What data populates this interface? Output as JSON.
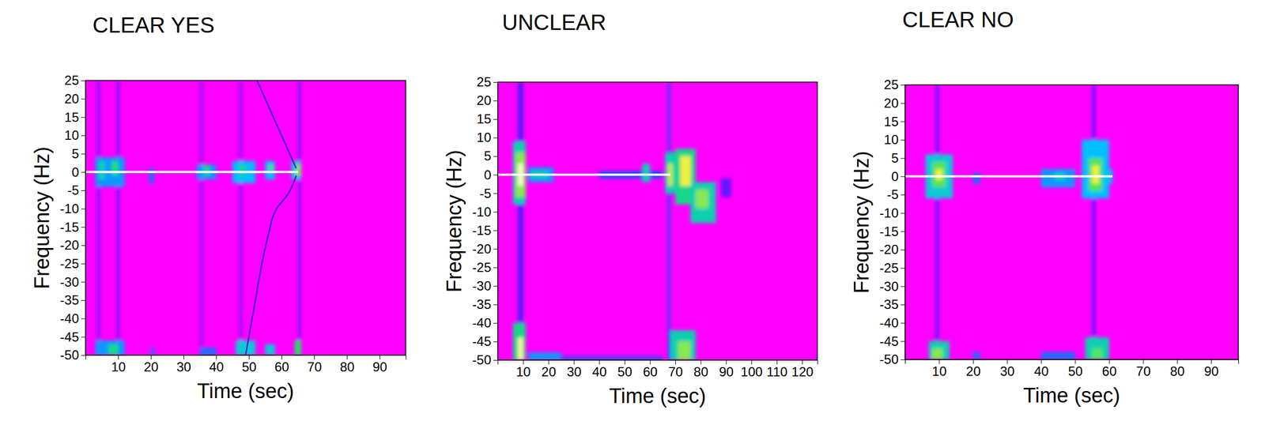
{
  "chart_data": [
    {
      "type": "heatmap",
      "title": "CLEAR YES",
      "xlabel": "Time (sec)",
      "ylabel": "Frequency (Hz)",
      "xlim": [
        0,
        98
      ],
      "xticks": [
        10,
        20,
        30,
        40,
        50,
        60,
        70,
        80,
        90
      ],
      "ylim": [
        -50,
        25
      ],
      "yticks": [
        -50,
        -45,
        -40,
        -35,
        -30,
        -25,
        -20,
        -15,
        -10,
        -5,
        0,
        5,
        10,
        15,
        20,
        25
      ],
      "clim": [
        0,
        1
      ],
      "cells": [
        {
          "t": [
            3.5,
            4.5
          ],
          "f": [
            -50,
            25
          ],
          "value": 0.12
        },
        {
          "t": [
            9.5,
            10.5
          ],
          "f": [
            -50,
            25
          ],
          "value": 0.12
        },
        {
          "t": [
            35,
            36
          ],
          "f": [
            -50,
            25
          ],
          "value": 0.1
        },
        {
          "t": [
            47,
            48
          ],
          "f": [
            -50,
            25
          ],
          "value": 0.1
        },
        {
          "t": [
            65,
            66
          ],
          "f": [
            -50,
            25
          ],
          "value": 0.12
        },
        {
          "t": [
            3,
            12
          ],
          "f": [
            -4,
            4
          ],
          "value": 0.35
        },
        {
          "t": [
            4,
            6
          ],
          "f": [
            -2,
            3
          ],
          "value": 0.5
        },
        {
          "t": [
            8,
            10
          ],
          "f": [
            -1,
            3
          ],
          "value": 0.6
        },
        {
          "t": [
            19.5,
            21
          ],
          "f": [
            -3,
            1
          ],
          "value": 0.3
        },
        {
          "t": [
            34,
            40
          ],
          "f": [
            -2,
            2
          ],
          "value": 0.35
        },
        {
          "t": [
            36,
            38
          ],
          "f": [
            -1,
            2
          ],
          "value": 0.55
        },
        {
          "t": [
            45,
            52
          ],
          "f": [
            -3,
            3
          ],
          "value": 0.4
        },
        {
          "t": [
            47,
            49
          ],
          "f": [
            -1,
            2
          ],
          "value": 0.55
        },
        {
          "t": [
            55,
            58
          ],
          "f": [
            -2,
            3
          ],
          "value": 0.4
        },
        {
          "t": [
            56,
            57.5
          ],
          "f": [
            0,
            2
          ],
          "value": 0.65
        },
        {
          "t": [
            63,
            66
          ],
          "f": [
            -2,
            3
          ],
          "value": 0.45
        },
        {
          "t": [
            64.5,
            66
          ],
          "f": [
            -1,
            2
          ],
          "value": 0.7
        },
        {
          "t": [
            3,
            12
          ],
          "f": [
            -50,
            -46
          ],
          "value": 0.35
        },
        {
          "t": [
            7,
            10
          ],
          "f": [
            -50,
            -47
          ],
          "value": 0.55
        },
        {
          "t": [
            20,
            21
          ],
          "f": [
            -50,
            -48
          ],
          "value": 0.3
        },
        {
          "t": [
            35,
            40
          ],
          "f": [
            -50,
            -48
          ],
          "value": 0.3
        },
        {
          "t": [
            46,
            52
          ],
          "f": [
            -50,
            -46
          ],
          "value": 0.45
        },
        {
          "t": [
            55,
            58
          ],
          "f": [
            -50,
            -47
          ],
          "value": 0.45
        },
        {
          "t": [
            64,
            66
          ],
          "f": [
            -50,
            -46
          ],
          "value": 0.6
        }
      ],
      "series": [
        {
          "color": "#ffffff",
          "x": [
            0,
            65
          ],
          "values": [
            0,
            0
          ]
        },
        {
          "color": "#3c1fd0",
          "x": [
            52.5,
            56,
            59,
            62,
            64.5
          ],
          "values": [
            25,
            18,
            12,
            6,
            1
          ]
        },
        {
          "color": "#3c1fd0",
          "x": [
            64.5,
            62,
            58.5,
            56,
            54,
            52,
            50,
            49
          ],
          "values": [
            -1,
            -6,
            -10,
            -17,
            -25,
            -35,
            -45,
            -50
          ]
        }
      ]
    },
    {
      "type": "heatmap",
      "title": "UNCLEAR",
      "xlabel": "Time (sec)",
      "ylabel": "Frequency (Hz)",
      "xlim": [
        0,
        126
      ],
      "xticks": [
        10,
        20,
        30,
        40,
        50,
        60,
        70,
        80,
        90,
        100,
        110,
        120
      ],
      "ylim": [
        -50,
        25
      ],
      "yticks": [
        -50,
        -45,
        -40,
        -35,
        -30,
        -25,
        -20,
        -15,
        -10,
        -5,
        0,
        5,
        10,
        15,
        20,
        25
      ],
      "clim": [
        0,
        1
      ],
      "cells": [
        {
          "t": [
            8,
            10
          ],
          "f": [
            -50,
            25
          ],
          "value": 0.18
        },
        {
          "t": [
            67,
            68
          ],
          "f": [
            -50,
            25
          ],
          "value": 0.25
        },
        {
          "t": [
            88,
            92
          ],
          "f": [
            -6,
            -1
          ],
          "value": 0.15
        },
        {
          "t": [
            40,
            65
          ],
          "f": [
            -1,
            1
          ],
          "value": 0.25
        },
        {
          "t": [
            25,
            65
          ],
          "f": [
            -50,
            -49
          ],
          "value": 0.25
        },
        {
          "t": [
            12,
            22
          ],
          "f": [
            -2,
            2
          ],
          "value": 0.35
        },
        {
          "t": [
            12,
            25
          ],
          "f": [
            -50,
            -48
          ],
          "value": 0.35
        },
        {
          "t": [
            13,
            20
          ],
          "f": [
            -1,
            1
          ],
          "value": 0.5
        },
        {
          "t": [
            6,
            11
          ],
          "f": [
            -8,
            9
          ],
          "value": 0.5
        },
        {
          "t": [
            7,
            11
          ],
          "f": [
            -6,
            6
          ],
          "value": 0.7
        },
        {
          "t": [
            8,
            10
          ],
          "f": [
            -3,
            3
          ],
          "value": 0.95
        },
        {
          "t": [
            6,
            11
          ],
          "f": [
            -50,
            -40
          ],
          "value": 0.55
        },
        {
          "t": [
            8,
            10
          ],
          "f": [
            -50,
            -44
          ],
          "value": 0.9
        },
        {
          "t": [
            57,
            60
          ],
          "f": [
            -2,
            3
          ],
          "value": 0.5
        },
        {
          "t": [
            66,
            70
          ],
          "f": [
            -5,
            6
          ],
          "value": 0.5
        },
        {
          "t": [
            67,
            69
          ],
          "f": [
            -3,
            3
          ],
          "value": 0.75
        },
        {
          "t": [
            70,
            78
          ],
          "f": [
            -8,
            7
          ],
          "value": 0.55
        },
        {
          "t": [
            72,
            76
          ],
          "f": [
            -3,
            5
          ],
          "value": 0.8
        },
        {
          "t": [
            76,
            86
          ],
          "f": [
            -13,
            -2
          ],
          "value": 0.5
        },
        {
          "t": [
            78,
            83
          ],
          "f": [
            -9,
            -4
          ],
          "value": 0.7
        },
        {
          "t": [
            68,
            78
          ],
          "f": [
            -50,
            -42
          ],
          "value": 0.5
        },
        {
          "t": [
            71,
            76
          ],
          "f": [
            -50,
            -45
          ],
          "value": 0.7
        }
      ],
      "series": [
        {
          "color": "#ffffff",
          "x": [
            0,
            68
          ],
          "values": [
            0,
            0
          ]
        }
      ]
    },
    {
      "type": "heatmap",
      "title": "CLEAR NO",
      "xlabel": "Time (sec)",
      "ylabel": "Frequency (Hz)",
      "xlim": [
        0,
        98
      ],
      "xticks": [
        10,
        20,
        30,
        40,
        50,
        60,
        70,
        80,
        90
      ],
      "ylim": [
        -50,
        25
      ],
      "yticks": [
        -50,
        -45,
        -40,
        -35,
        -30,
        -25,
        -20,
        -15,
        -10,
        -5,
        0,
        5,
        10,
        15,
        20,
        25
      ],
      "clim": [
        0,
        1
      ],
      "cells": [
        {
          "t": [
            9,
            10
          ],
          "f": [
            -50,
            25
          ],
          "value": 0.15
        },
        {
          "t": [
            55,
            56
          ],
          "f": [
            -50,
            25
          ],
          "value": 0.15
        },
        {
          "t": [
            6,
            14
          ],
          "f": [
            -6,
            6
          ],
          "value": 0.45
        },
        {
          "t": [
            8,
            12
          ],
          "f": [
            -3,
            4
          ],
          "value": 0.65
        },
        {
          "t": [
            9,
            11
          ],
          "f": [
            -1,
            2
          ],
          "value": 0.8
        },
        {
          "t": [
            20,
            22
          ],
          "f": [
            -2,
            1
          ],
          "value": 0.3
        },
        {
          "t": [
            40,
            50
          ],
          "f": [
            -3,
            2
          ],
          "value": 0.35
        },
        {
          "t": [
            44,
            47
          ],
          "f": [
            -1,
            1
          ],
          "value": 0.5
        },
        {
          "t": [
            52,
            60
          ],
          "f": [
            -6,
            10
          ],
          "value": 0.4
        },
        {
          "t": [
            54,
            58
          ],
          "f": [
            -4,
            5
          ],
          "value": 0.65
        },
        {
          "t": [
            55,
            57
          ],
          "f": [
            -2,
            3
          ],
          "value": 0.8
        },
        {
          "t": [
            58,
            61
          ],
          "f": [
            -2,
            2
          ],
          "value": 0.4
        },
        {
          "t": [
            7,
            13
          ],
          "f": [
            -50,
            -45
          ],
          "value": 0.5
        },
        {
          "t": [
            8,
            11
          ],
          "f": [
            -50,
            -47
          ],
          "value": 0.7
        },
        {
          "t": [
            20,
            22
          ],
          "f": [
            -50,
            -48
          ],
          "value": 0.3
        },
        {
          "t": [
            40,
            50
          ],
          "f": [
            -50,
            -48
          ],
          "value": 0.3
        },
        {
          "t": [
            53,
            60
          ],
          "f": [
            -50,
            -44
          ],
          "value": 0.5
        },
        {
          "t": [
            55,
            58
          ],
          "f": [
            -50,
            -47
          ],
          "value": 0.65
        }
      ],
      "series": [
        {
          "color": "#ffffff",
          "x": [
            0,
            61
          ],
          "values": [
            0,
            0
          ]
        }
      ]
    }
  ]
}
